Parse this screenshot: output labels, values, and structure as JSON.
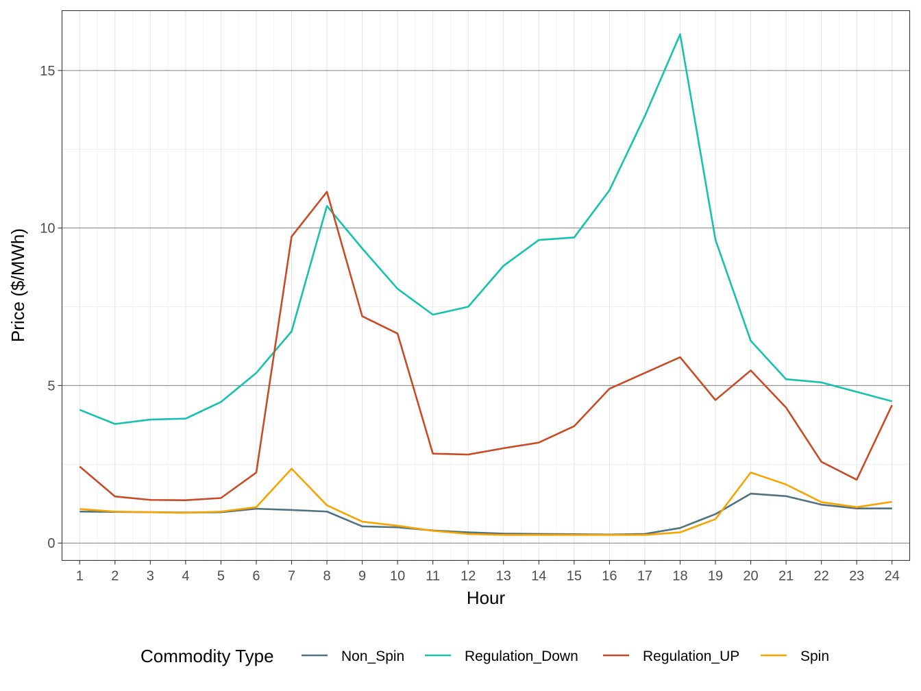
{
  "chart_data": {
    "type": "line",
    "title": "",
    "xlabel": "Hour",
    "ylabel": "Price ($/MWh)",
    "x": [
      1,
      2,
      3,
      4,
      5,
      6,
      7,
      8,
      9,
      10,
      11,
      12,
      13,
      14,
      15,
      16,
      17,
      18,
      19,
      20,
      21,
      22,
      23,
      24
    ],
    "x_tick_labels": [
      "1",
      "2",
      "3",
      "4",
      "5",
      "6",
      "7",
      "8",
      "9",
      "10",
      "11",
      "12",
      "13",
      "14",
      "15",
      "16",
      "17",
      "18",
      "19",
      "20",
      "21",
      "22",
      "23",
      "24"
    ],
    "xlim": [
      0.5,
      24.5
    ],
    "ylim": [
      -0.55,
      16.9
    ],
    "y_ticks": [
      0,
      5,
      10,
      15
    ],
    "y_tick_labels": [
      "0",
      "5",
      "10",
      "15"
    ],
    "grid": true,
    "legend": {
      "title": "Commodity Type",
      "position": "bottom"
    },
    "series": [
      {
        "name": "Non_Spin",
        "color": "#4e7282",
        "values": [
          1.0,
          0.99,
          0.98,
          0.97,
          0.98,
          1.09,
          1.05,
          1.0,
          0.53,
          0.5,
          0.4,
          0.34,
          0.3,
          0.29,
          0.28,
          0.27,
          0.29,
          0.48,
          0.92,
          1.57,
          1.49,
          1.22,
          1.1,
          1.1
        ]
      },
      {
        "name": "Regulation_Down",
        "color": "#14c2ad",
        "values": [
          4.23,
          3.78,
          3.92,
          3.95,
          4.48,
          5.4,
          6.72,
          10.7,
          9.35,
          8.07,
          7.25,
          7.5,
          8.8,
          9.62,
          9.7,
          11.2,
          13.55,
          16.15,
          9.63,
          6.42,
          5.2,
          5.1,
          4.8,
          4.5
        ]
      },
      {
        "name": "Regulation_UP",
        "color": "#c94b25",
        "values": [
          2.43,
          1.48,
          1.37,
          1.36,
          1.43,
          2.24,
          9.73,
          11.15,
          7.2,
          6.65,
          2.84,
          2.81,
          3.01,
          3.19,
          3.71,
          4.9,
          5.4,
          5.9,
          4.54,
          5.48,
          4.3,
          2.58,
          2.01,
          4.38
        ]
      },
      {
        "name": "Spin",
        "color": "#f7a400",
        "values": [
          1.08,
          1.0,
          0.98,
          0.96,
          1.0,
          1.14,
          2.36,
          1.2,
          0.68,
          0.55,
          0.39,
          0.29,
          0.26,
          0.26,
          0.26,
          0.26,
          0.26,
          0.34,
          0.76,
          2.24,
          1.86,
          1.3,
          1.14,
          1.31
        ]
      }
    ]
  }
}
